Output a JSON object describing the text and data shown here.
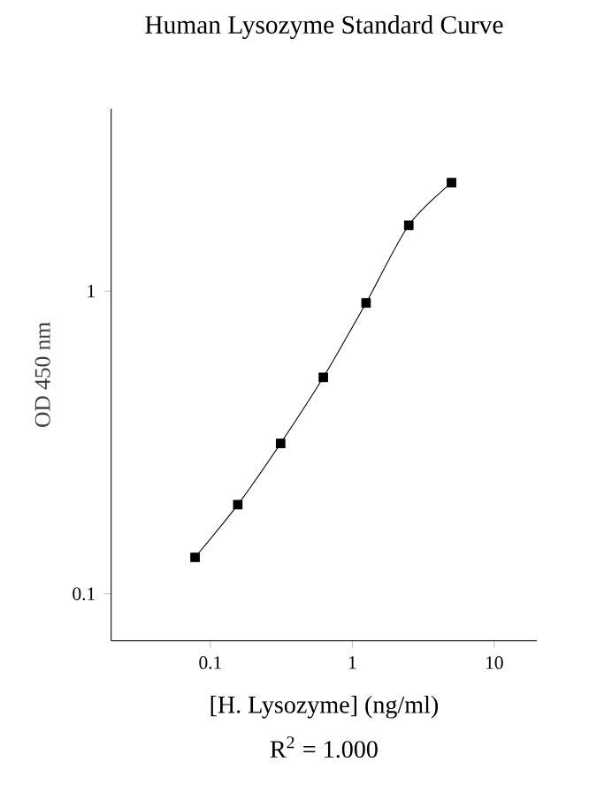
{
  "chart_data": {
    "type": "line",
    "title": "Human Lysozyme Standard Curve",
    "xlabel": "[H. Lysozyme] (ng/ml)",
    "ylabel": "OD 450 nm",
    "annotations": [
      "R$^{2}$ = 1.000"
    ],
    "log": "xy",
    "marker": "square",
    "line_style": "solid",
    "grid": false,
    "x": [
      0.078,
      0.156,
      0.3125,
      0.625,
      1.25,
      2.5,
      5
    ],
    "series": [
      {
        "color": "#000000",
        "values": [
          0.132,
          0.197,
          0.314,
          0.519,
          0.914,
          1.65,
          2.28
        ]
      }
    ],
    "xlim": [
      0.02,
      20
    ],
    "ylim": [
      0.07,
      4
    ],
    "xticks": [
      0.1,
      1,
      10
    ],
    "yticks": [
      0.1,
      1
    ]
  }
}
